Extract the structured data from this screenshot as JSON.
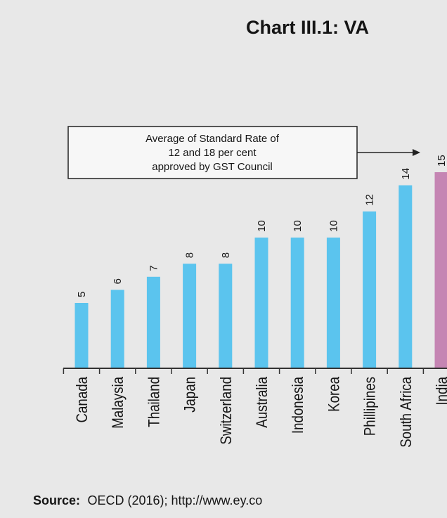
{
  "chart_data": {
    "type": "bar",
    "title": "Chart III.1: VA",
    "categories": [
      "Canada",
      "Malaysia",
      "Thailand",
      "Japan",
      "Switzerland",
      "Australia",
      "Indonesia",
      "Korea",
      "Phillipines",
      "South Africa",
      "India"
    ],
    "values": [
      5,
      6,
      7,
      8,
      8,
      10,
      10,
      10,
      12,
      14,
      15
    ],
    "ylim": [
      0,
      15
    ],
    "grid": false,
    "colors": {
      "default": "#5bc4ee",
      "highlight": "#c585b3",
      "highlight_category": "India"
    },
    "annotation": {
      "lines": [
        "Average of Standard Rate of",
        "12 and 18 per cent",
        "approved by GST Council"
      ],
      "target_category": "India"
    },
    "source_label": "Source:",
    "source_text": "OECD (2016); http://www.ey.co"
  }
}
